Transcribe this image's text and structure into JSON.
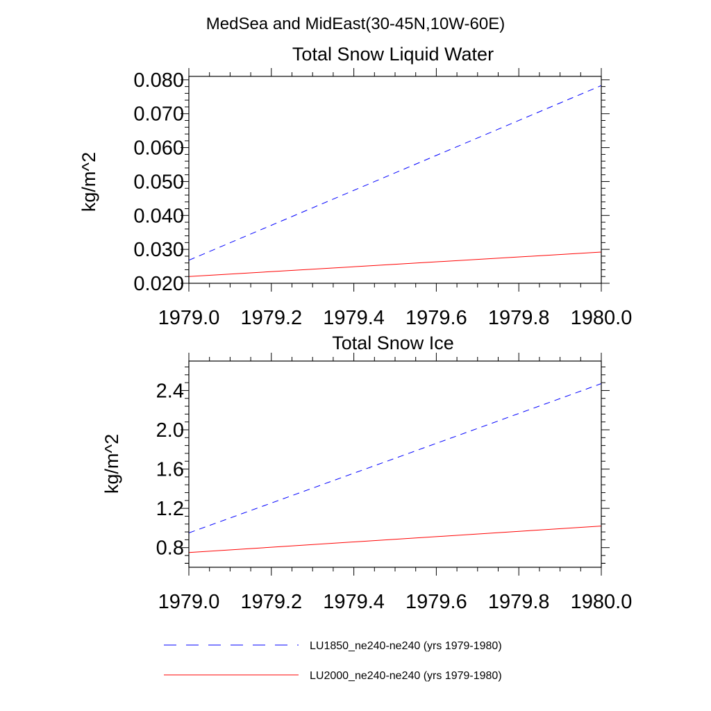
{
  "figure_title": "MedSea and MidEast(30-45N,10W-60E)",
  "legend": {
    "entries": [
      {
        "label": "LU1850_ne240-ne240 (yrs 1979-1980)",
        "color": "#0000ff",
        "dash": "dashed"
      },
      {
        "label": "LU2000_ne240-ne240 (yrs 1979-1980)",
        "color": "#ff0000",
        "dash": "solid"
      }
    ]
  },
  "chart_data": [
    {
      "type": "line",
      "title": "Total Snow Liquid Water",
      "xlabel": "",
      "ylabel": "kg/m^2",
      "xlim": [
        1979.0,
        1980.0
      ],
      "ylim": [
        0.02,
        0.081
      ],
      "xticks": [
        "1979.0",
        "1979.2",
        "1979.4",
        "1979.6",
        "1979.8",
        "1980.0"
      ],
      "yticks": [
        "0.020",
        "0.030",
        "0.040",
        "0.050",
        "0.060",
        "0.070",
        "0.080"
      ],
      "series": [
        {
          "name": "LU1850_ne240-ne240 (yrs 1979-1980)",
          "color": "#0000ff",
          "x": [
            1979.0,
            1980.0
          ],
          "y": [
            0.0268,
            0.0783
          ]
        },
        {
          "name": "LU2000_ne240-ne240 (yrs 1979-1980)",
          "color": "#ff0000",
          "x": [
            1979.0,
            1980.0
          ],
          "y": [
            0.022,
            0.0292
          ]
        }
      ]
    },
    {
      "type": "line",
      "title": "Total Snow Ice",
      "xlabel": "",
      "ylabel": "kg/m^2",
      "xlim": [
        1979.0,
        1980.0
      ],
      "ylim": [
        0.6,
        2.7
      ],
      "xticks": [
        "1979.0",
        "1979.2",
        "1979.4",
        "1979.6",
        "1979.8",
        "1980.0"
      ],
      "yticks": [
        "0.8",
        "1.2",
        "1.6",
        "2.0",
        "2.4"
      ],
      "series": [
        {
          "name": "LU1850_ne240-ne240 (yrs 1979-1980)",
          "color": "#0000ff",
          "x": [
            1979.0,
            1980.0
          ],
          "y": [
            0.95,
            2.47
          ]
        },
        {
          "name": "LU2000_ne240-ne240 (yrs 1979-1980)",
          "color": "#ff0000",
          "x": [
            1979.0,
            1980.0
          ],
          "y": [
            0.75,
            1.02
          ]
        }
      ]
    }
  ]
}
